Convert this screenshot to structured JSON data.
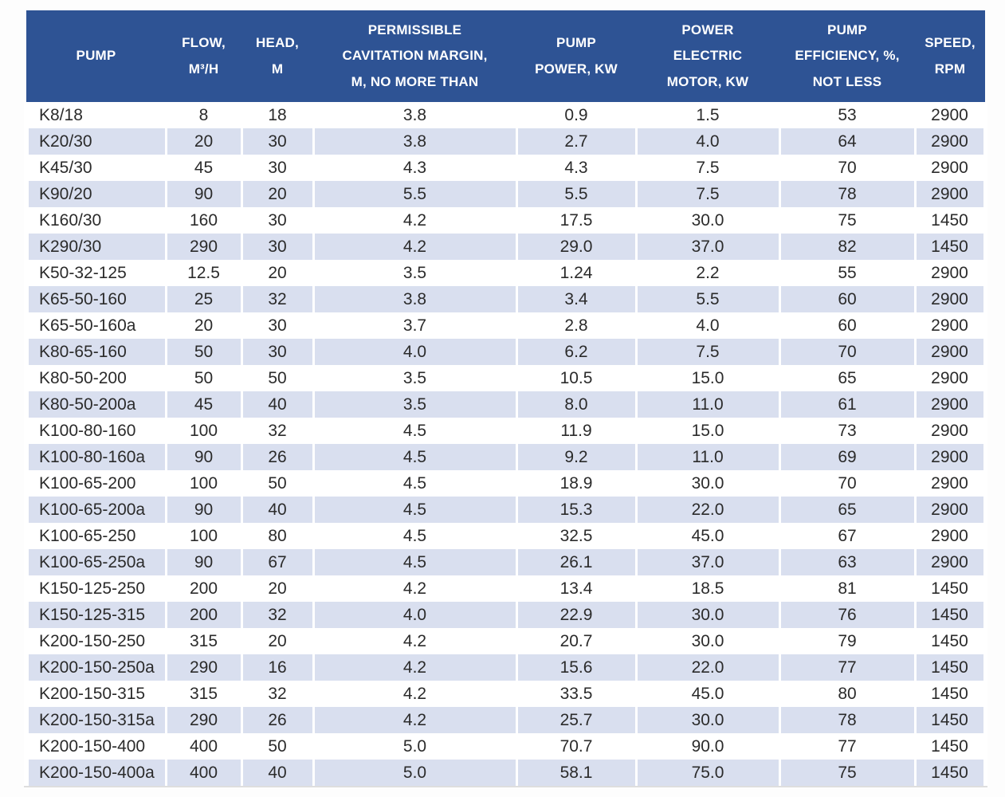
{
  "colors": {
    "header_bg": "#2E5394",
    "header_text": "#FFFFFF",
    "stripe_bg": "#D9DFEF",
    "row_bg": "#FFFFFF",
    "body_text": "#2B2B2B"
  },
  "chart_data": {
    "type": "table",
    "columns": [
      "PUMP",
      "FLOW,\nM³/H",
      "HEAD,\nM",
      "PERMISSIBLE\nCAVITATION MARGIN,\nM, NO MORE THAN",
      "PUMP\nPOWER, KW",
      "POWER\nELECTRIC\nMOTOR, KW",
      "PUMP\nEFFICIENCY, %,\nNOT LESS",
      "SPEED,\nRPM"
    ],
    "rows": [
      [
        "K8/18",
        "8",
        "18",
        "3.8",
        "0.9",
        "1.5",
        "53",
        "2900"
      ],
      [
        "K20/30",
        "20",
        "30",
        "3.8",
        "2.7",
        "4.0",
        "64",
        "2900"
      ],
      [
        "K45/30",
        "45",
        "30",
        "4.3",
        "4.3",
        "7.5",
        "70",
        "2900"
      ],
      [
        "K90/20",
        "90",
        "20",
        "5.5",
        "5.5",
        "7.5",
        "78",
        "2900"
      ],
      [
        "K160/30",
        "160",
        "30",
        "4.2",
        "17.5",
        "30.0",
        "75",
        "1450"
      ],
      [
        "K290/30",
        "290",
        "30",
        "4.2",
        "29.0",
        "37.0",
        "82",
        "1450"
      ],
      [
        "K50-32-125",
        "12.5",
        "20",
        "3.5",
        "1.24",
        "2.2",
        "55",
        "2900"
      ],
      [
        "K65-50-160",
        "25",
        "32",
        "3.8",
        "3.4",
        "5.5",
        "60",
        "2900"
      ],
      [
        "K65-50-160a",
        "20",
        "30",
        "3.7",
        "2.8",
        "4.0",
        "60",
        "2900"
      ],
      [
        "K80-65-160",
        "50",
        "30",
        "4.0",
        "6.2",
        "7.5",
        "70",
        "2900"
      ],
      [
        "K80-50-200",
        "50",
        "50",
        "3.5",
        "10.5",
        "15.0",
        "65",
        "2900"
      ],
      [
        "K80-50-200a",
        "45",
        "40",
        "3.5",
        "8.0",
        "11.0",
        "61",
        "2900"
      ],
      [
        "K100-80-160",
        "100",
        "32",
        "4.5",
        "11.9",
        "15.0",
        "73",
        "2900"
      ],
      [
        "K100-80-160a",
        "90",
        "26",
        "4.5",
        "9.2",
        "11.0",
        "69",
        "2900"
      ],
      [
        "K100-65-200",
        "100",
        "50",
        "4.5",
        "18.9",
        "30.0",
        "70",
        "2900"
      ],
      [
        "K100-65-200a",
        "90",
        "40",
        "4.5",
        "15.3",
        "22.0",
        "65",
        "2900"
      ],
      [
        "K100-65-250",
        "100",
        "80",
        "4.5",
        "32.5",
        "45.0",
        "67",
        "2900"
      ],
      [
        "K100-65-250a",
        "90",
        "67",
        "4.5",
        "26.1",
        "37.0",
        "63",
        "2900"
      ],
      [
        "K150-125-250",
        "200",
        "20",
        "4.2",
        "13.4",
        "18.5",
        "81",
        "1450"
      ],
      [
        "K150-125-315",
        "200",
        "32",
        "4.0",
        "22.9",
        "30.0",
        "76",
        "1450"
      ],
      [
        "K200-150-250",
        "315",
        "20",
        "4.2",
        "20.7",
        "30.0",
        "79",
        "1450"
      ],
      [
        "K200-150-250a",
        "290",
        "16",
        "4.2",
        "15.6",
        "22.0",
        "77",
        "1450"
      ],
      [
        "K200-150-315",
        "315",
        "32",
        "4.2",
        "33.5",
        "45.0",
        "80",
        "1450"
      ],
      [
        "K200-150-315a",
        "290",
        "26",
        "4.2",
        "25.7",
        "30.0",
        "78",
        "1450"
      ],
      [
        "K200-150-400",
        "400",
        "50",
        "5.0",
        "70.7",
        "90.0",
        "77",
        "1450"
      ],
      [
        "K200-150-400a",
        "400",
        "40",
        "5.0",
        "58.1",
        "75.0",
        "75",
        "1450"
      ]
    ]
  }
}
